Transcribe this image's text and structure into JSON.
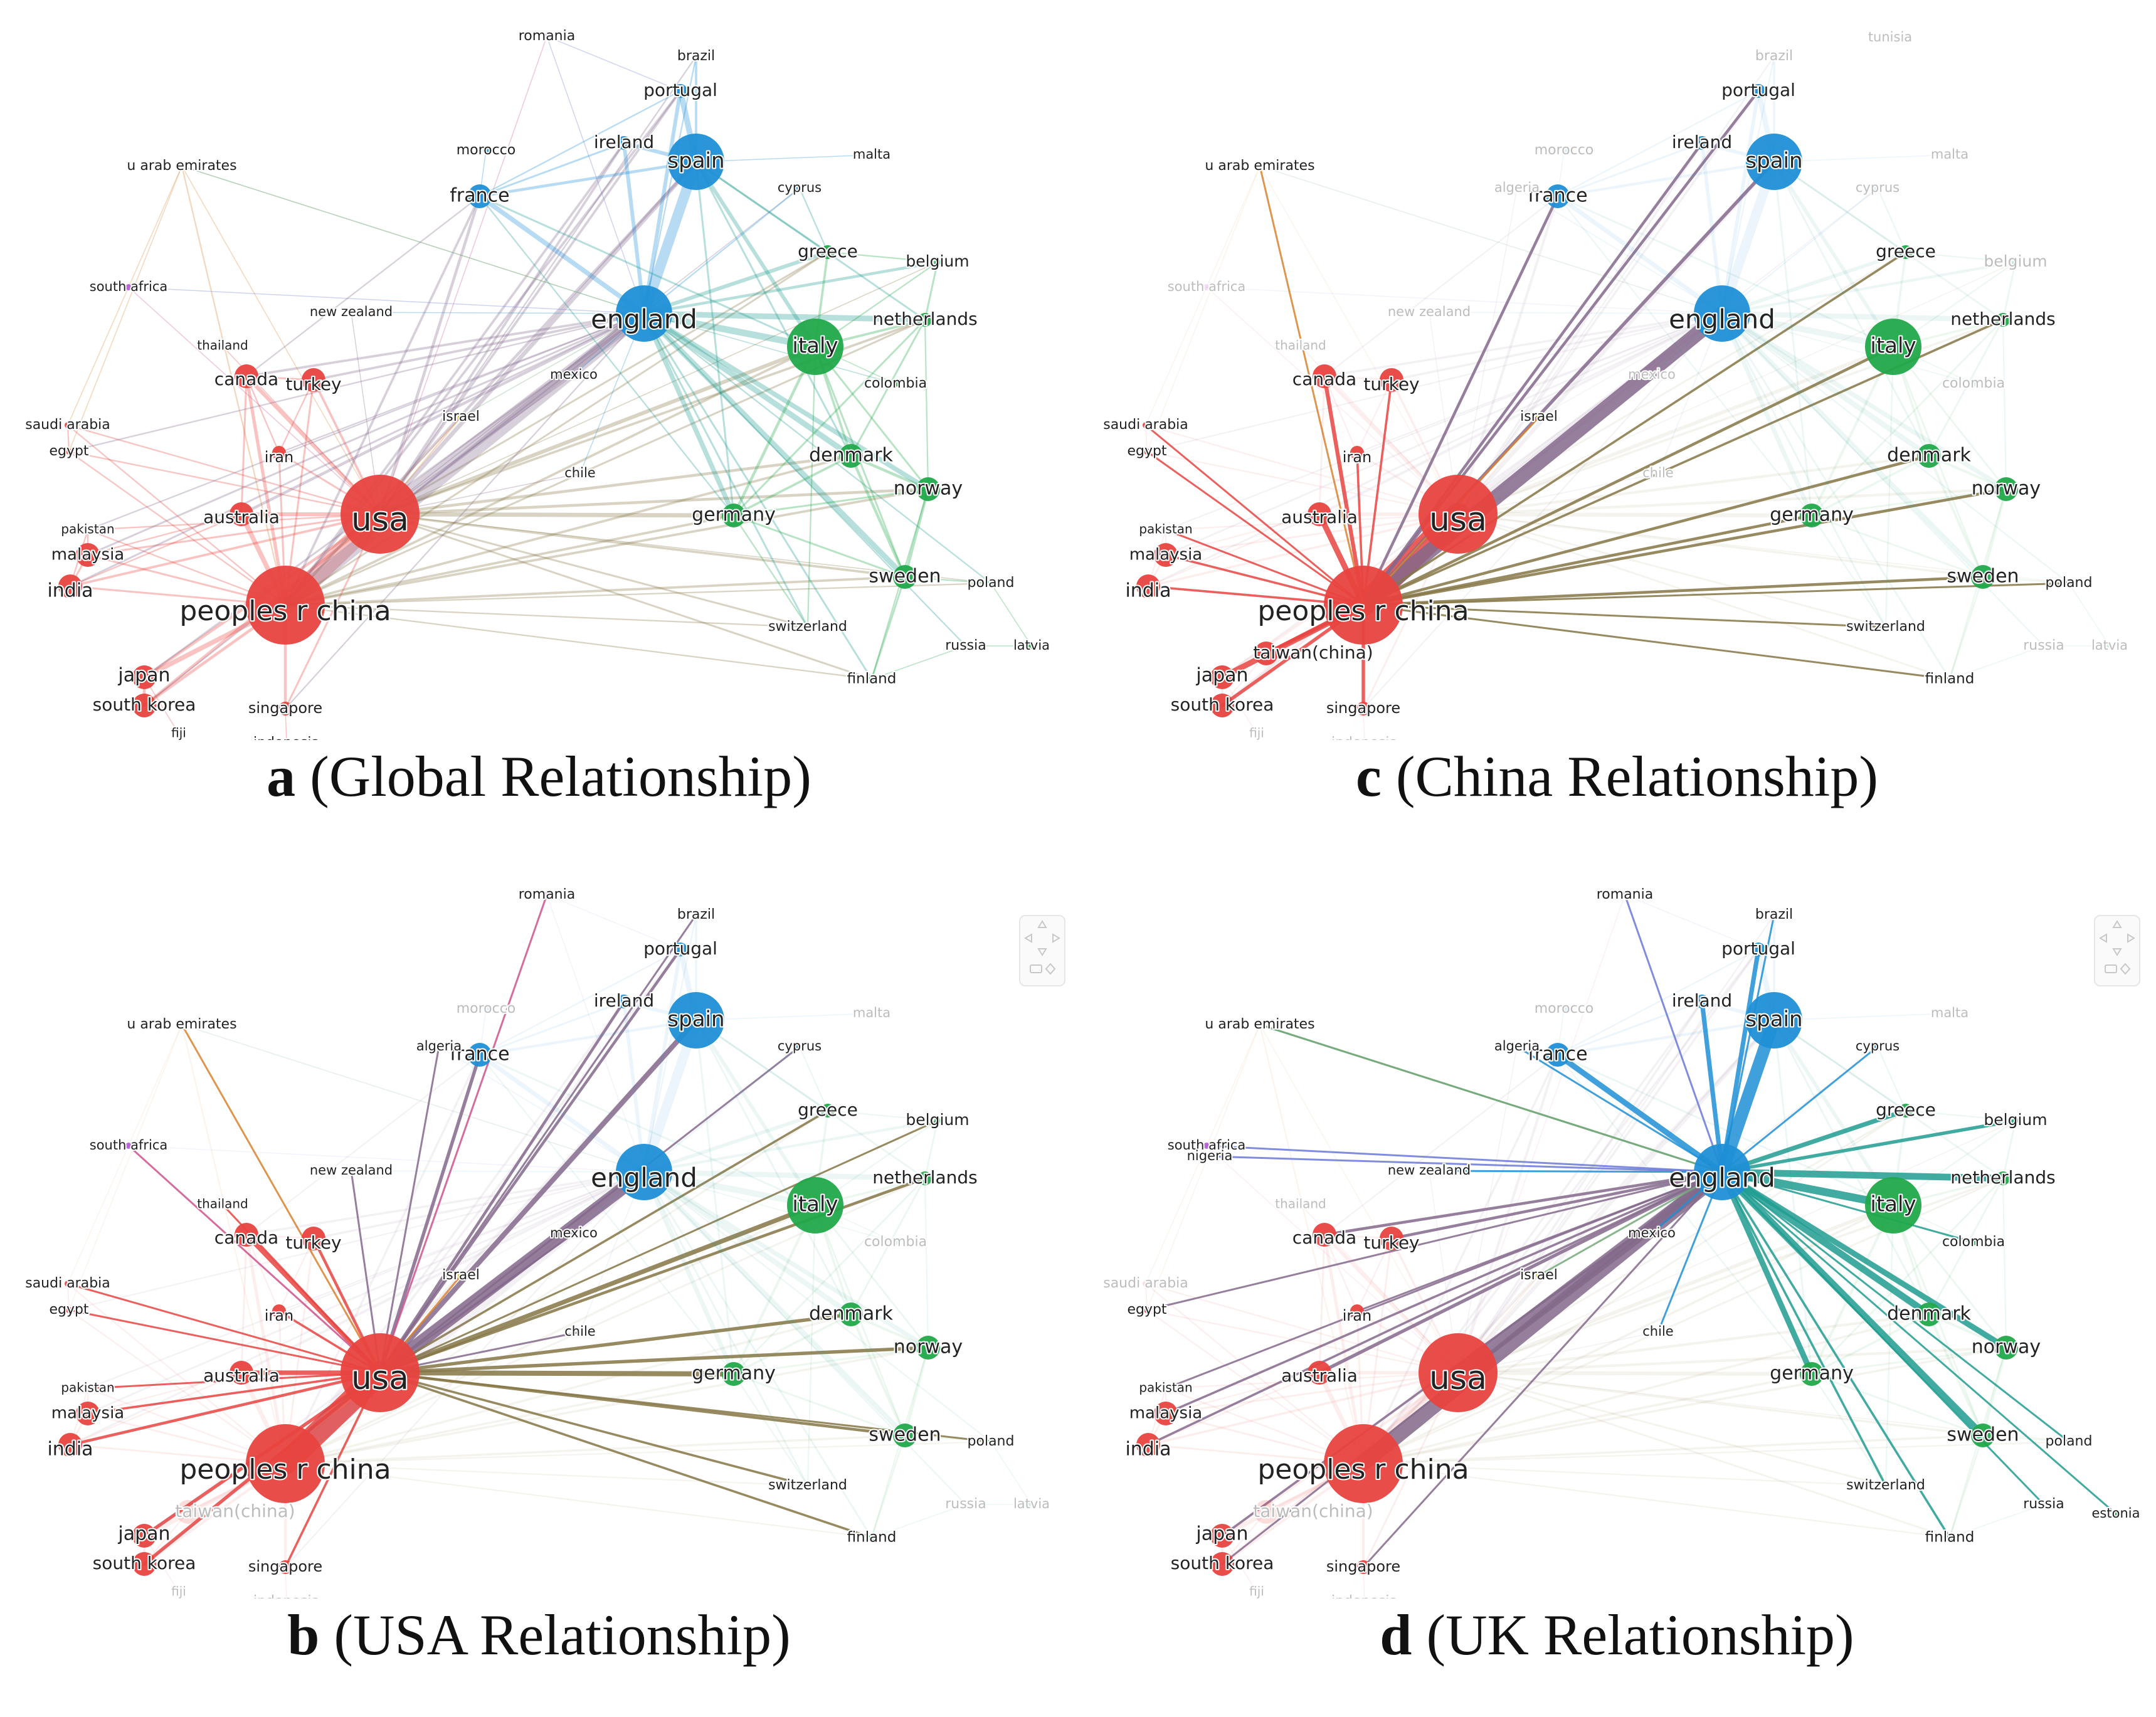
{
  "colors": {
    "red": "#e8433f",
    "blue": "#1f8fd6",
    "green": "#21a84a",
    "yellow": "#c9c21e",
    "purple": "#b461d8"
  },
  "countries": [
    {
      "id": "usa",
      "label": "usa",
      "cluster": "red",
      "size": 5
    },
    {
      "id": "china",
      "label": "peoples r china",
      "cluster": "red",
      "size": 5
    },
    {
      "id": "england",
      "label": "england",
      "cluster": "blue",
      "size": 4
    },
    {
      "id": "canada",
      "label": "canada",
      "cluster": "red",
      "size": 3
    },
    {
      "id": "turkey",
      "label": "turkey",
      "cluster": "red",
      "size": 3
    },
    {
      "id": "australia",
      "label": "australia",
      "cluster": "red",
      "size": 3
    },
    {
      "id": "iran",
      "label": "iran",
      "cluster": "red",
      "size": 2
    },
    {
      "id": "japan",
      "label": "japan",
      "cluster": "red",
      "size": 3
    },
    {
      "id": "southkorea",
      "label": "south korea",
      "cluster": "red",
      "size": 3
    },
    {
      "id": "india",
      "label": "india",
      "cluster": "red",
      "size": 3
    },
    {
      "id": "malaysia",
      "label": "malaysia",
      "cluster": "red",
      "size": 3
    },
    {
      "id": "pakistan",
      "label": "pakistan",
      "cluster": "red",
      "size": 1
    },
    {
      "id": "egypt",
      "label": "egypt",
      "cluster": "red",
      "size": 1
    },
    {
      "id": "saudiarabia",
      "label": "saudi arabia",
      "cluster": "red",
      "size": 1
    },
    {
      "id": "thailand",
      "label": "thailand",
      "cluster": "red",
      "size": 1
    },
    {
      "id": "singapore",
      "label": "singapore",
      "cluster": "red",
      "size": 2
    },
    {
      "id": "indonesia",
      "label": "indonesia",
      "cluster": "red",
      "size": 1
    },
    {
      "id": "fiji",
      "label": "fiji",
      "cluster": "red",
      "size": 1
    },
    {
      "id": "taiwan",
      "label": "taiwan(china)",
      "cluster": "red",
      "size": 3
    },
    {
      "id": "israel",
      "label": "israel",
      "cluster": "yellow",
      "size": 1
    },
    {
      "id": "uae",
      "label": "u arab emirates",
      "cluster": "yellow",
      "size": 1
    },
    {
      "id": "southafrica",
      "label": "south africa",
      "cluster": "purple",
      "size": 1
    },
    {
      "id": "romania",
      "label": "romania",
      "cluster": "purple",
      "size": 1
    },
    {
      "id": "nigeria",
      "label": "nigeria",
      "cluster": "purple",
      "size": 1
    },
    {
      "id": "france",
      "label": "france",
      "cluster": "blue",
      "size": 3
    },
    {
      "id": "spain",
      "label": "spain",
      "cluster": "blue",
      "size": 4
    },
    {
      "id": "ireland",
      "label": "ireland",
      "cluster": "blue",
      "size": 2
    },
    {
      "id": "portugal",
      "label": "portugal",
      "cluster": "blue",
      "size": 2
    },
    {
      "id": "brazil",
      "label": "brazil",
      "cluster": "blue",
      "size": 1
    },
    {
      "id": "morocco",
      "label": "morocco",
      "cluster": "blue",
      "size": 1
    },
    {
      "id": "algeria",
      "label": "algeria",
      "cluster": "blue",
      "size": 1
    },
    {
      "id": "malta",
      "label": "malta",
      "cluster": "blue",
      "size": 1
    },
    {
      "id": "cyprus",
      "label": "cyprus",
      "cluster": "blue",
      "size": 1
    },
    {
      "id": "newzealand",
      "label": "new zealand",
      "cluster": "blue",
      "size": 1
    },
    {
      "id": "mexico",
      "label": "mexico",
      "cluster": "blue",
      "size": 1
    },
    {
      "id": "chile",
      "label": "chile",
      "cluster": "blue",
      "size": 1
    },
    {
      "id": "tunisia",
      "label": "tunisia",
      "cluster": "blue",
      "size": 1
    },
    {
      "id": "italy",
      "label": "italy",
      "cluster": "green",
      "size": 4
    },
    {
      "id": "greece",
      "label": "greece",
      "cluster": "green",
      "size": 2
    },
    {
      "id": "belgium",
      "label": "belgium",
      "cluster": "green",
      "size": 1
    },
    {
      "id": "netherlands",
      "label": "netherlands",
      "cluster": "green",
      "size": 2
    },
    {
      "id": "colombia",
      "label": "colombia",
      "cluster": "green",
      "size": 1
    },
    {
      "id": "denmark",
      "label": "denmark",
      "cluster": "green",
      "size": 3
    },
    {
      "id": "norway",
      "label": "norway",
      "cluster": "green",
      "size": 3
    },
    {
      "id": "germany",
      "label": "germany",
      "cluster": "green",
      "size": 3
    },
    {
      "id": "sweden",
      "label": "sweden",
      "cluster": "green",
      "size": 3
    },
    {
      "id": "poland",
      "label": "poland",
      "cluster": "green",
      "size": 1
    },
    {
      "id": "switzerland",
      "label": "switzerland",
      "cluster": "green",
      "size": 1
    },
    {
      "id": "russia",
      "label": "russia",
      "cluster": "green",
      "size": 1
    },
    {
      "id": "latvia",
      "label": "latvia",
      "cluster": "green",
      "size": 1
    },
    {
      "id": "finland",
      "label": "finland",
      "cluster": "green",
      "size": 1
    },
    {
      "id": "estonia",
      "label": "estonia",
      "cluster": "green",
      "size": 1
    }
  ],
  "panels": [
    {
      "id": "a",
      "letter": "a",
      "caption": "(Global Relationship)",
      "focus": null,
      "nav_widget": false
    },
    {
      "id": "c",
      "letter": "c",
      "caption": "(China Relationship)",
      "focus": "china",
      "nav_widget": false
    },
    {
      "id": "b",
      "letter": "b",
      "caption": "(USA Relationship)",
      "focus": "usa",
      "nav_widget": true
    },
    {
      "id": "d",
      "letter": "d",
      "caption": "(UK Relationship)",
      "focus": "england",
      "nav_widget": true
    }
  ]
}
